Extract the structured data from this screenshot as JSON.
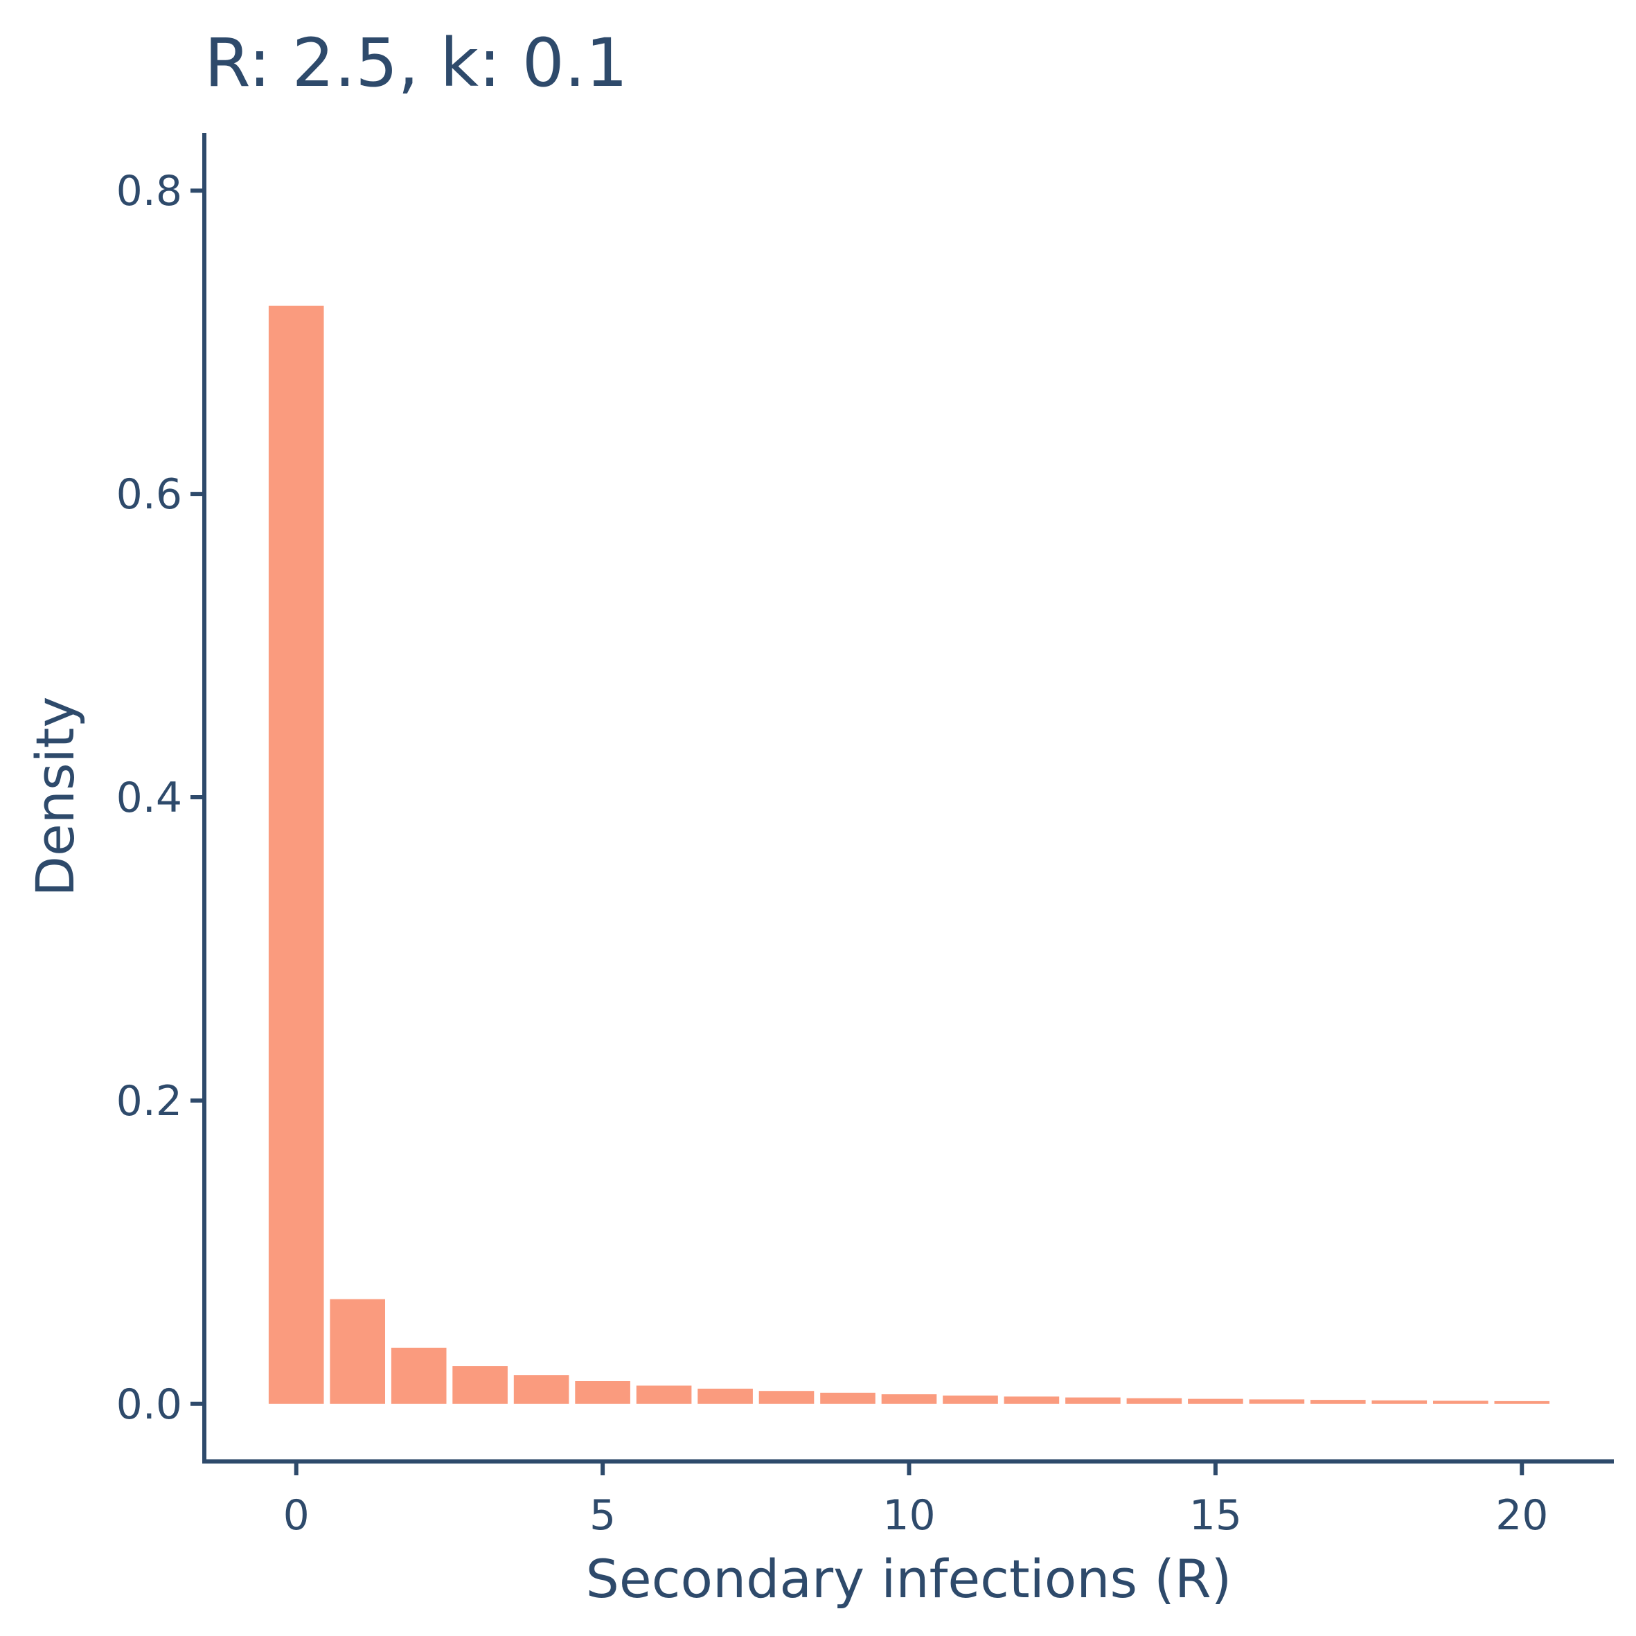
{
  "colors": {
    "bar": "#FA9B7E",
    "text": "#2E4A6B",
    "axis": "#2E4A6B",
    "background": "#ffffff"
  },
  "chart_data": {
    "type": "bar",
    "title": "R: 2.5, k: 0.1",
    "xlabel": "Secondary infections (R)",
    "ylabel": "Density",
    "x": [
      0,
      1,
      2,
      3,
      4,
      5,
      6,
      7,
      8,
      9,
      10,
      11,
      12,
      13,
      14,
      15,
      16,
      17,
      18,
      19,
      20
    ],
    "values": [
      0.724,
      0.069,
      0.037,
      0.025,
      0.019,
      0.015,
      0.012,
      0.01,
      0.0085,
      0.0073,
      0.0063,
      0.0055,
      0.0048,
      0.0042,
      0.0037,
      0.0033,
      0.0029,
      0.0026,
      0.0023,
      0.002,
      0.0018
    ],
    "xlim": [
      -1.5,
      21.5
    ],
    "ylim": [
      -0.038,
      0.838
    ],
    "x_ticks": [
      0,
      5,
      10,
      15,
      20
    ],
    "x_tick_labels": [
      "0",
      "5",
      "10",
      "15",
      "20"
    ],
    "y_ticks": [
      0.0,
      0.2,
      0.4,
      0.6,
      0.8
    ],
    "y_tick_labels": [
      "0.0",
      "0.2",
      "0.4",
      "0.6",
      "0.8"
    ],
    "grid": false,
    "legend": "none"
  }
}
